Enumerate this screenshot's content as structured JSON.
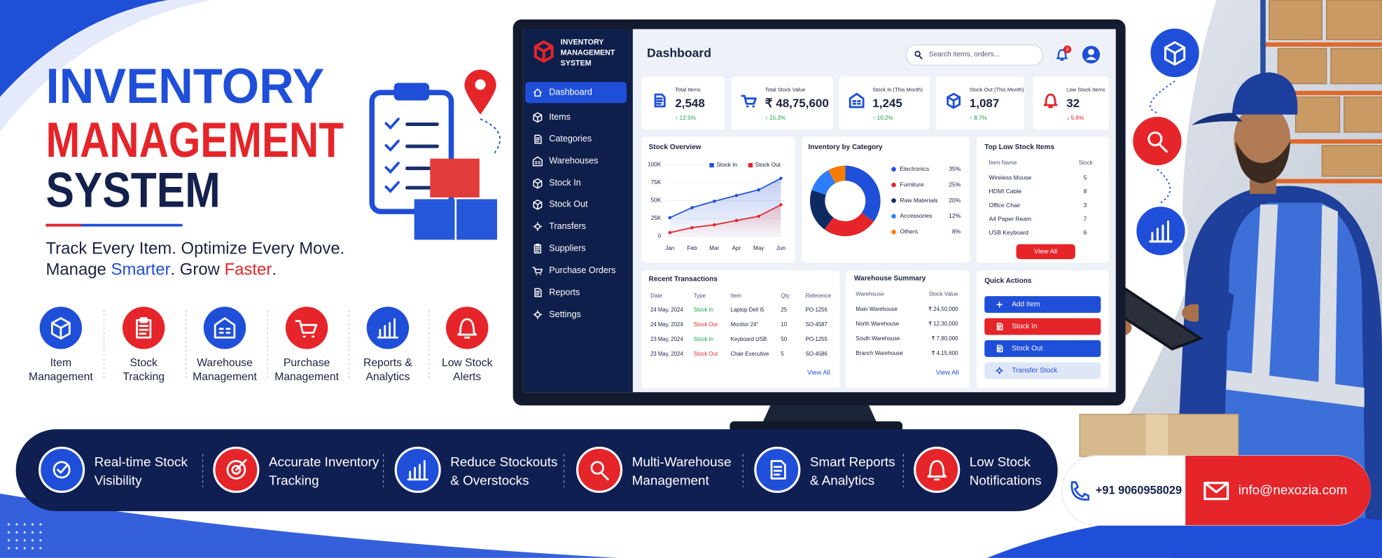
{
  "brand": {
    "title_lines": [
      "INVENTORY",
      "MANAGEMENT",
      "SYSTEM"
    ],
    "tagline_lines": [
      [
        "Track Every Item. Optimize Every Move."
      ],
      [
        "Manage ",
        "Smarter",
        ". Grow ",
        "Faster",
        "."
      ]
    ]
  },
  "features": [
    [
      "Item",
      "Management"
    ],
    [
      "Stock",
      "Tracking"
    ],
    [
      "Warehouse",
      "Management"
    ],
    [
      "Purchase",
      "Management"
    ],
    [
      "Reports &",
      "Analytics"
    ],
    [
      "Low Stock",
      "Alerts"
    ]
  ],
  "benefits": [
    [
      "Real-time Stock",
      "Visibility"
    ],
    [
      "Accurate Inventory",
      "Tracking"
    ],
    [
      "Reduce Stockouts",
      "& Overstocks"
    ],
    [
      "Multi-Warehouse",
      "Management"
    ],
    [
      "Smart Reports",
      "& Analytics"
    ],
    [
      "Low Stock",
      "Notifications"
    ]
  ],
  "contact": {
    "phone": "+91 9060958029",
    "email": "info@nexozia.com"
  },
  "dashboard": {
    "app_name_lines": [
      "INVENTORY",
      "MANAGEMENT",
      "SYSTEM"
    ],
    "menu": [
      "Dashboard",
      "Items",
      "Categories",
      "Warehouses",
      "Stock In",
      "Stock Out",
      "Transfers",
      "Suppliers",
      "Purchase Orders",
      "Reports",
      "Settings"
    ],
    "page_title": "Dashboard",
    "search_placeholder": "Search items, orders...",
    "notification_count": "3",
    "kpis": [
      {
        "label": "Total Items",
        "value": "2,548",
        "change": "↑ 12.5%"
      },
      {
        "label": "Total Stock Value",
        "value": "₹ 48,75,600",
        "change": "↑ 15.3%"
      },
      {
        "label": "Stock In (This Month)",
        "value": "1,245",
        "change": "↑ 10.2%"
      },
      {
        "label": "Stock Out (This Month)",
        "value": "1,087",
        "change": "↑ 8.7%"
      },
      {
        "label": "Low Stock Items",
        "value": "32",
        "change": "↓ 5.6%"
      }
    ],
    "low_stock": {
      "title": "Top Low Stock Items",
      "columns": [
        "Item Name",
        "Stock"
      ],
      "rows": [
        [
          "Wireless Mouse",
          5
        ],
        [
          "HDMI Cable",
          8
        ],
        [
          "Office Chair",
          3
        ],
        [
          "A4 Paper Ream",
          7
        ],
        [
          "USB Keyboard",
          6
        ]
      ],
      "button": "View All"
    },
    "transactions": {
      "title": "Recent Transactions",
      "columns": [
        "Date",
        "Type",
        "Item",
        "Qty",
        "Reference"
      ],
      "rows": [
        [
          "24 May, 2024",
          "Stock In",
          "Laptop Dell i5",
          25,
          "PO-1256"
        ],
        [
          "24 May, 2024",
          "Stock Out",
          "Monitor 24\"",
          10,
          "SO-4587"
        ],
        [
          "23 May, 2024",
          "Stock In",
          "Keyboard USB",
          50,
          "PO-1255"
        ],
        [
          "23 May, 2024",
          "Stock Out",
          "Chair Executive",
          5,
          "SO-4586"
        ]
      ],
      "link": "View All"
    },
    "warehouses": {
      "title": "Warehouse Summary",
      "columns": [
        "Warehouse",
        "Stock Value"
      ],
      "rows": [
        [
          "Main Warehouse",
          "₹ 24,50,000"
        ],
        [
          "North Warehouse",
          "₹ 12,30,000"
        ],
        [
          "South Warehouse",
          "₹ 7,80,000"
        ],
        [
          "Branch Warehouse",
          "₹ 4,15,600"
        ]
      ],
      "link": "View All"
    },
    "quick_actions": {
      "title": "Quick Actions",
      "buttons": [
        "Add Item",
        "Stock In",
        "Stock Out",
        "Transfer Stock"
      ]
    }
  },
  "chart_data": [
    {
      "type": "line",
      "title": "Stock Overview",
      "categories": [
        "Jan",
        "Feb",
        "Mar",
        "Apr",
        "May",
        "Jun"
      ],
      "series": [
        {
          "name": "Stock In",
          "color": "#1f4fd8",
          "values": [
            26000,
            40000,
            49000,
            57000,
            65000,
            81000
          ]
        },
        {
          "name": "Stock Out",
          "color": "#e5252a",
          "values": [
            5000,
            12000,
            16000,
            22000,
            28000,
            44000
          ]
        }
      ],
      "ylim": [
        0,
        100000
      ],
      "yticks": [
        0,
        {
          "value": 25000,
          "label": "25K"
        },
        {
          "value": 50000,
          "label": "50K"
        },
        {
          "value": 75000,
          "label": "75K"
        },
        {
          "value": 100000,
          "label": "100K"
        }
      ]
    },
    {
      "type": "pie",
      "donut": true,
      "title": "Inventory by Category",
      "categories": [
        "Electronics",
        "Furniture",
        "Raw Materials",
        "Accessories",
        "Others"
      ],
      "values": [
        35,
        25,
        20,
        12,
        8
      ],
      "value_labels": [
        "35%",
        "25%",
        "20%",
        "12%",
        "8%"
      ],
      "colors": [
        "#1f4fd8",
        "#e5252a",
        "#0f2a63",
        "#2d7ff9",
        "#f57c00"
      ]
    }
  ]
}
